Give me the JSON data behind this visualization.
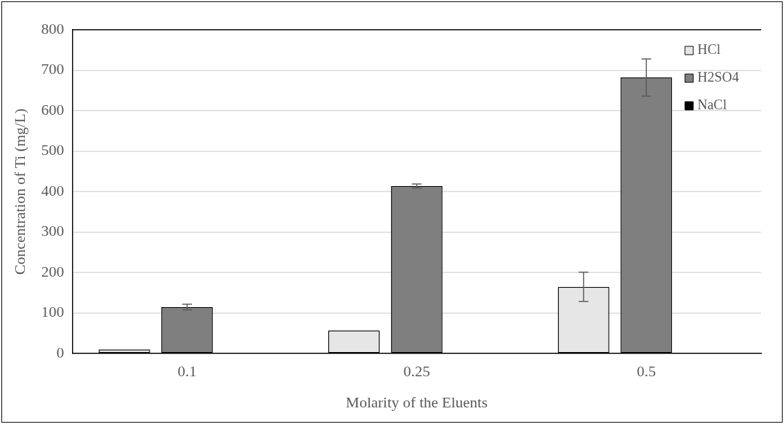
{
  "chart_data": {
    "type": "bar",
    "xlabel": "Molarity of the Eluents",
    "ylabel": "Concentration of Ti (mg/L)",
    "categories": [
      "0.1",
      "0.25",
      "0.5"
    ],
    "series": [
      {
        "name": "HCl",
        "color": "#e6e6e6",
        "values": [
          10,
          57,
          165
        ],
        "errors": [
          null,
          null,
          36
        ]
      },
      {
        "name": "H2SO4",
        "color": "#7f7f7f",
        "values": [
          115,
          414,
          682
        ],
        "errors": [
          7,
          5,
          46
        ]
      },
      {
        "name": "NaCl",
        "color": "#000000",
        "values": [
          1,
          1,
          1
        ]
      }
    ],
    "ylim": [
      0,
      800
    ],
    "yticks": [
      0,
      100,
      200,
      300,
      400,
      500,
      600,
      700,
      800
    ],
    "grid": "y",
    "legend": "top right"
  }
}
